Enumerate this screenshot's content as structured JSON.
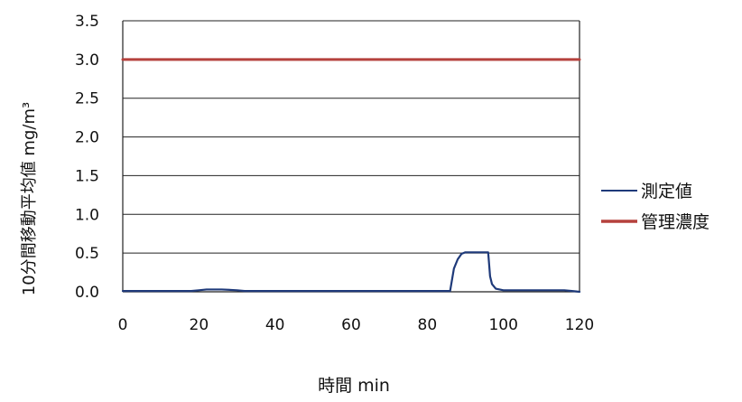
{
  "chart_data": {
    "type": "line",
    "title": "",
    "xlabel": "時間 min",
    "ylabel": "10分間移動平均値 mg/m³",
    "xlim": [
      0,
      120
    ],
    "ylim": [
      0,
      3.5
    ],
    "x_ticks": [
      0,
      20,
      40,
      60,
      80,
      100,
      120
    ],
    "y_ticks": [
      0.0,
      0.5,
      1.0,
      1.5,
      2.0,
      2.5,
      3.0,
      3.5
    ],
    "x_tick_labels": [
      "0",
      "20",
      "40",
      "60",
      "80",
      "100",
      "120"
    ],
    "y_tick_labels": [
      "0.0",
      "0.5",
      "1.0",
      "1.5",
      "2.0",
      "2.5",
      "3.0",
      "3.5"
    ],
    "grid": "horizontal",
    "legend_position": "right",
    "series": [
      {
        "name": "測定値",
        "color": "#1f3a7a",
        "points": [
          [
            0,
            0.01
          ],
          [
            10,
            0.01
          ],
          [
            18,
            0.01
          ],
          [
            20,
            0.02
          ],
          [
            22,
            0.03
          ],
          [
            26,
            0.03
          ],
          [
            30,
            0.02
          ],
          [
            32,
            0.01
          ],
          [
            40,
            0.01
          ],
          [
            50,
            0.01
          ],
          [
            60,
            0.01
          ],
          [
            70,
            0.01
          ],
          [
            80,
            0.01
          ],
          [
            86,
            0.01
          ],
          [
            87,
            0.3
          ],
          [
            88,
            0.42
          ],
          [
            89,
            0.49
          ],
          [
            90,
            0.51
          ],
          [
            94,
            0.51
          ],
          [
            96,
            0.51
          ],
          [
            96.5,
            0.2
          ],
          [
            97,
            0.1
          ],
          [
            98,
            0.04
          ],
          [
            100,
            0.02
          ],
          [
            110,
            0.02
          ],
          [
            116,
            0.02
          ],
          [
            118,
            0.01
          ],
          [
            120,
            0.0
          ]
        ]
      },
      {
        "name": "管理濃度",
        "color": "#b5413d",
        "points": [
          [
            0,
            3.0
          ],
          [
            120,
            3.0
          ]
        ]
      }
    ]
  }
}
